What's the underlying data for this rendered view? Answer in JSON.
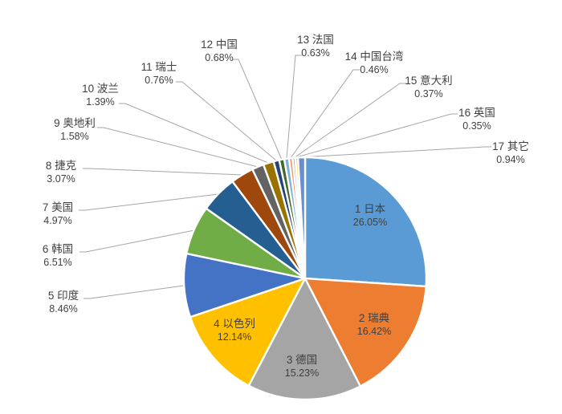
{
  "chart_data": {
    "type": "pie",
    "legend": "none",
    "grid": "off",
    "start_angle_deg": 0,
    "direction": "clockwise",
    "label_format": "name + percent",
    "label_text_color": "#404040",
    "leader_line_color": "#A6A6A6",
    "slice_border_color": "#FFFFFF",
    "background_color": "#FFFFFF",
    "items": [
      {
        "label": "1 日本",
        "pct": "26.05%",
        "value": 26.05,
        "color": "#5B9BD5",
        "label_inside": true
      },
      {
        "label": "2 瑞典",
        "pct": "16.42%",
        "value": 16.42,
        "color": "#ED7D31",
        "label_inside": true
      },
      {
        "label": "3 德国",
        "pct": "15.23%",
        "value": 15.23,
        "color": "#A5A5A5",
        "label_inside": true
      },
      {
        "label": "4 以色列",
        "pct": "12.14%",
        "value": 12.14,
        "color": "#FFC000",
        "label_inside": true
      },
      {
        "label": "5 印度",
        "pct": "8.46%",
        "value": 8.46,
        "color": "#4472C4",
        "label_inside": false
      },
      {
        "label": "6 韩国",
        "pct": "6.51%",
        "value": 6.51,
        "color": "#70AD47",
        "label_inside": false
      },
      {
        "label": "7 美国",
        "pct": "4.97%",
        "value": 4.97,
        "color": "#255E91",
        "label_inside": false
      },
      {
        "label": "8 捷克",
        "pct": "3.07%",
        "value": 3.07,
        "color": "#9E480E",
        "label_inside": false
      },
      {
        "label": "9 奥地利",
        "pct": "1.58%",
        "value": 1.58,
        "color": "#636363",
        "label_inside": false
      },
      {
        "label": "10 波兰",
        "pct": "1.39%",
        "value": 1.39,
        "color": "#997300",
        "label_inside": false
      },
      {
        "label": "11 瑞士",
        "pct": "0.76%",
        "value": 0.76,
        "color": "#264478",
        "label_inside": false
      },
      {
        "label": "12 中国",
        "pct": "0.68%",
        "value": 0.68,
        "color": "#43682B",
        "label_inside": false
      },
      {
        "label": "13 法国",
        "pct": "0.63%",
        "value": 0.63,
        "color": "#7CAFDD",
        "label_inside": false
      },
      {
        "label": "14 中国台湾",
        "pct": "0.46%",
        "value": 0.46,
        "color": "#F1975A",
        "label_inside": false
      },
      {
        "label": "15 意大利",
        "pct": "0.37%",
        "value": 0.37,
        "color": "#B7B7B7",
        "label_inside": false
      },
      {
        "label": "16 英国",
        "pct": "0.35%",
        "value": 0.35,
        "color": "#FFCD33",
        "label_inside": false
      },
      {
        "label": "17 其它",
        "pct": "0.94%",
        "value": 0.94,
        "color": "#698ED0",
        "label_inside": false
      }
    ]
  }
}
